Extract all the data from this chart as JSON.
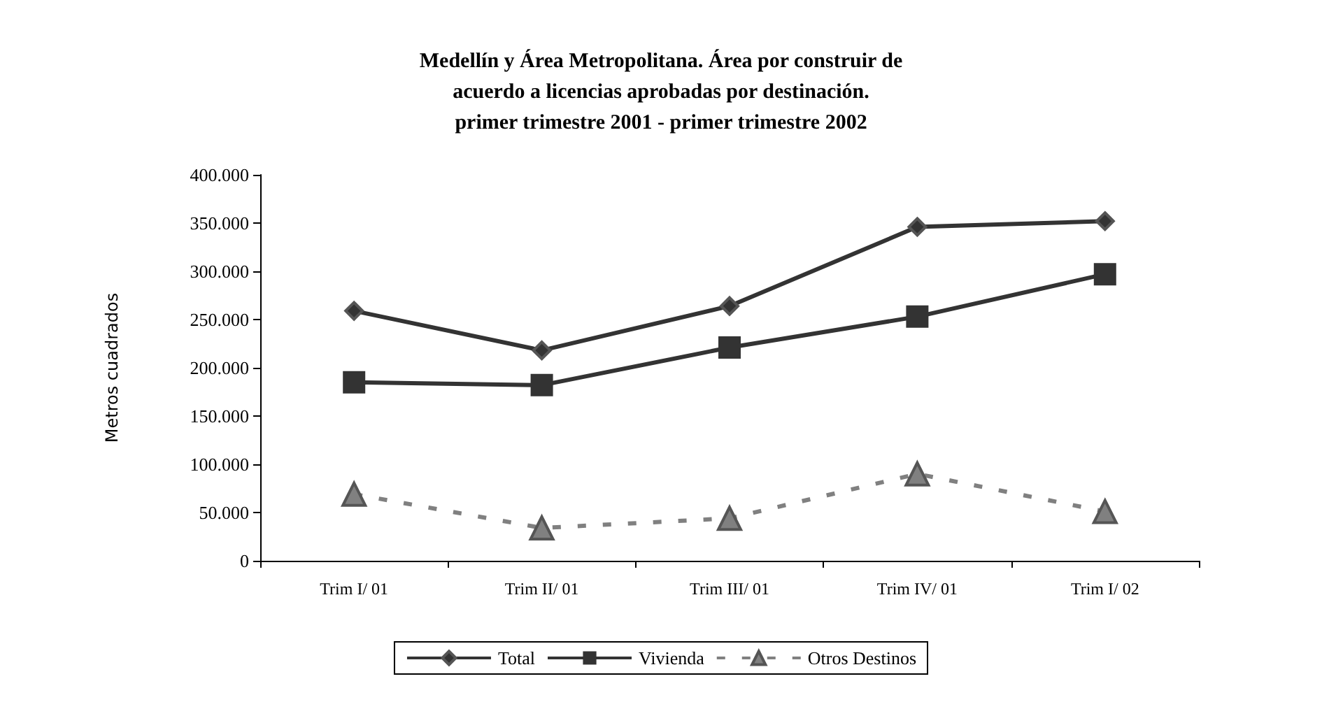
{
  "chart_data": {
    "type": "line",
    "title": "Medellín y Área Metropolitana. Área por construir de\nacuerdo a licencias aprobadas por destinación.\nprimer trimestre 2001 - primer trimestre 2002",
    "ylabel": "Metros cuadrados",
    "categories": [
      "Trim I/ 01",
      "Trim II/ 01",
      "Trim III/ 01",
      "Trim IV/ 01",
      "Trim I/ 02"
    ],
    "series": [
      {
        "name": "Total",
        "color": "#333333",
        "marker": "diamond",
        "line_style": "solid",
        "values": [
          259000,
          218000,
          264000,
          346000,
          352000
        ]
      },
      {
        "name": "Vivienda",
        "color": "#333333",
        "marker": "square",
        "line_style": "solid",
        "values": [
          185000,
          182000,
          221000,
          253000,
          297000
        ]
      },
      {
        "name": "Otros Destinos",
        "color": "#808080",
        "marker": "triangle",
        "line_style": "dashed",
        "values": [
          69000,
          34000,
          44000,
          90000,
          51000
        ]
      }
    ],
    "ylim": [
      0,
      400000
    ],
    "yticks": [
      0,
      {
        "value": 50000,
        "label": "50.000"
      },
      {
        "value": 100000,
        "label": "100.000"
      },
      {
        "value": 150000,
        "label": "150.000"
      },
      {
        "value": 200000,
        "label": "200.000"
      },
      {
        "value": 250000,
        "label": "250.000"
      },
      {
        "value": 300000,
        "label": "300.000"
      },
      {
        "value": 350000,
        "label": "350.000"
      },
      {
        "value": 400000,
        "label": "400.000"
      }
    ],
    "grid": false,
    "legend": "bottom"
  }
}
